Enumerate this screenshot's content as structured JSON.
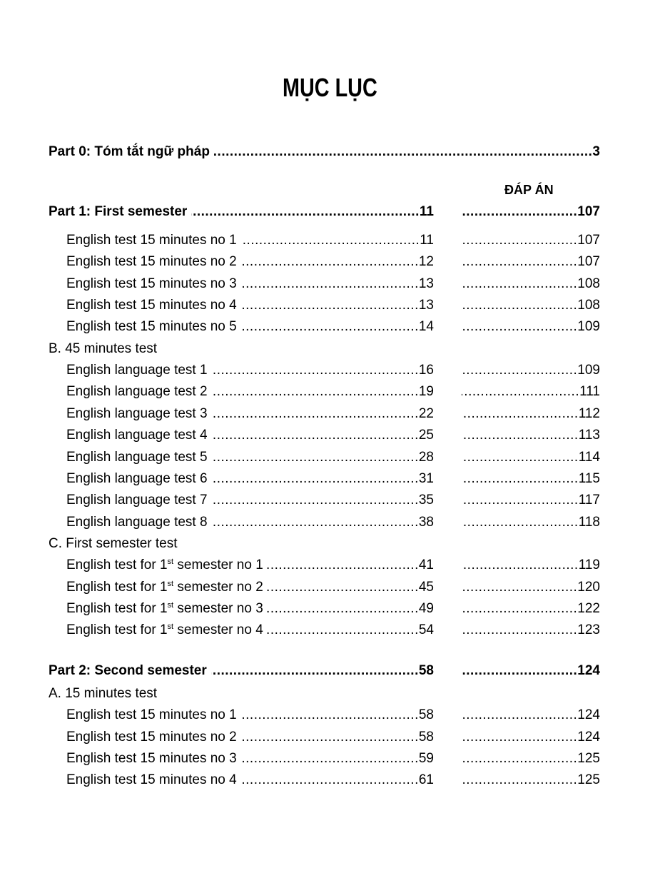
{
  "title": "MỤC LỤC",
  "answer_column_header": "ĐÁP ÁN",
  "part0": {
    "label": "Part 0: Tóm tắt ngữ pháp",
    "page": "3"
  },
  "part1": {
    "label": "Part 1: First semester",
    "page": "11",
    "answer": "107",
    "groups": [
      {
        "heading": "",
        "items": [
          {
            "label": "English test 15 minutes no 1",
            "page": "11",
            "answer": "107"
          },
          {
            "label": "English test 15 minutes no 2",
            "page": "12",
            "answer": "107"
          },
          {
            "label": "English test 15 minutes no 3",
            "page": "13",
            "answer": "108"
          },
          {
            "label": "English test 15 minutes no 4",
            "page": "13",
            "answer": "108"
          },
          {
            "label": "English test 15 minutes no 5",
            "page": "14",
            "answer": "109"
          }
        ]
      },
      {
        "heading": "B. 45 minutes test",
        "items": [
          {
            "label": "English language test 1",
            "page": "16",
            "answer": "109"
          },
          {
            "label": "English language test 2",
            "page": "19",
            "answer": "111"
          },
          {
            "label": "English language test 3",
            "page": "22",
            "answer": "112"
          },
          {
            "label": "English language test 4",
            "page": "25",
            "answer": "113"
          },
          {
            "label": "English language test 5",
            "page": "28",
            "answer": "114"
          },
          {
            "label": "English language test 6",
            "page": "31",
            "answer": "115"
          },
          {
            "label": "English language test 7",
            "page": "35",
            "answer": "117"
          },
          {
            "label": "English language test 8",
            "page": "38",
            "answer": "118"
          }
        ]
      },
      {
        "heading": "C. First semester test",
        "items": [
          {
            "label": "English test for 1",
            "sup": "st",
            "label_rest": " semester no 1",
            "page": "41",
            "answer": "119"
          },
          {
            "label": "English test for 1",
            "sup": "st",
            "label_rest": " semester no 2",
            "page": "45",
            "answer": "120"
          },
          {
            "label": "English test for 1",
            "sup": "st",
            "label_rest": " semester no 3",
            "page": "49",
            "answer": "122"
          },
          {
            "label": "English test for 1",
            "sup": "st",
            "label_rest": " semester no 4",
            "page": "54",
            "answer": "123"
          }
        ]
      }
    ]
  },
  "part2": {
    "label": "Part 2: Second semester",
    "page": "58",
    "answer": "124",
    "groups": [
      {
        "heading": "A. 15 minutes test",
        "items": [
          {
            "label": "English test 15 minutes no 1",
            "page": "58",
            "answer": "124"
          },
          {
            "label": "English test 15 minutes no 2",
            "page": "58",
            "answer": "124"
          },
          {
            "label": "English test 15 minutes no 3",
            "page": "59",
            "answer": "125"
          },
          {
            "label": "English test 15 minutes no 4",
            "page": "61",
            "answer": "125"
          }
        ]
      }
    ]
  }
}
